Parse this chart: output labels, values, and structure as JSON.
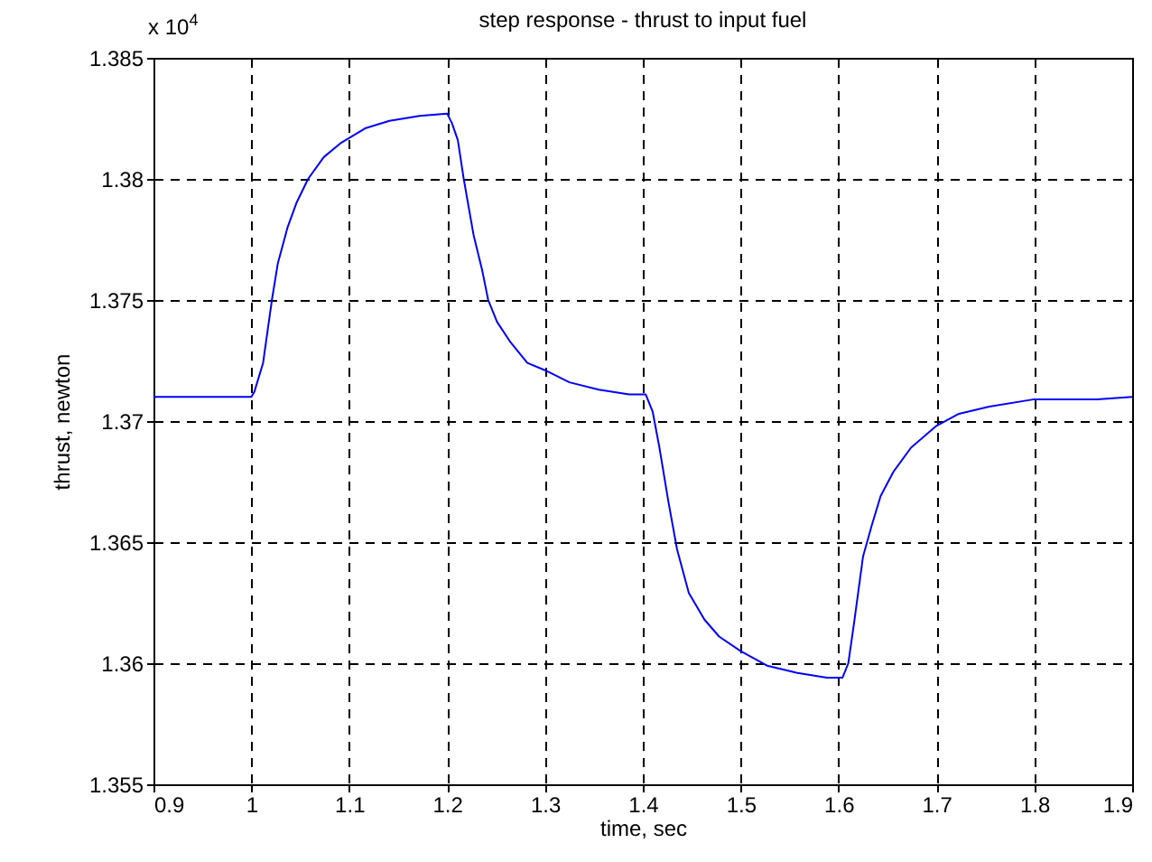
{
  "chart_data": {
    "type": "line",
    "title": "step response - thrust to input fuel",
    "xlabel": "time, sec",
    "ylabel": "thrust, newton",
    "annotations": [
      "x 10$^{4}$"
    ],
    "x": [
      0.9,
      1.0,
      1.003,
      1.012,
      1.021,
      1.027,
      1.037,
      1.046,
      1.058,
      1.074,
      1.092,
      1.117,
      1.141,
      1.172,
      1.2,
      1.205,
      1.211,
      1.217,
      1.227,
      1.236,
      1.242,
      1.251,
      1.264,
      1.282,
      1.3,
      1.325,
      1.355,
      1.386,
      1.403,
      1.41,
      1.417,
      1.426,
      1.435,
      1.447,
      1.463,
      1.478,
      1.5,
      1.527,
      1.558,
      1.588,
      1.604,
      1.61,
      1.616,
      1.625,
      1.634,
      1.643,
      1.656,
      1.674,
      1.7,
      1.723,
      1.754,
      1.8,
      1.864,
      1.9
    ],
    "series": [
      {
        "color": "#0000ff",
        "values": [
          1.371,
          1.371,
          1.3712,
          1.3724,
          1.375,
          1.3765,
          1.378,
          1.379,
          1.38,
          1.3809,
          1.3815,
          1.3821,
          1.3824,
          1.3826,
          1.3827,
          1.3823,
          1.3816,
          1.38,
          1.3777,
          1.3762,
          1.375,
          1.3741,
          1.3733,
          1.3724,
          1.3721,
          1.3716,
          1.3713,
          1.3711,
          1.3711,
          1.3704,
          1.3689,
          1.3667,
          1.3647,
          1.3629,
          1.3618,
          1.3611,
          1.3605,
          1.3599,
          1.3596,
          1.3594,
          1.3594,
          1.36,
          1.3617,
          1.3644,
          1.3657,
          1.3669,
          1.3679,
          1.3689,
          1.3698,
          1.3703,
          1.3706,
          1.3709,
          1.3709,
          1.371
        ]
      }
    ],
    "xlim": [
      0.9,
      1.9
    ],
    "xticks": [
      0.9,
      1,
      1.1,
      1.2,
      1.3,
      1.4,
      1.5,
      1.6,
      1.7,
      1.8,
      1.9
    ],
    "ylim": [
      1.355,
      1.385
    ],
    "yticks": [
      1.355,
      1.36,
      1.365,
      1.37,
      1.375,
      1.38,
      1.385
    ],
    "grid": true,
    "line_style": "solid"
  }
}
